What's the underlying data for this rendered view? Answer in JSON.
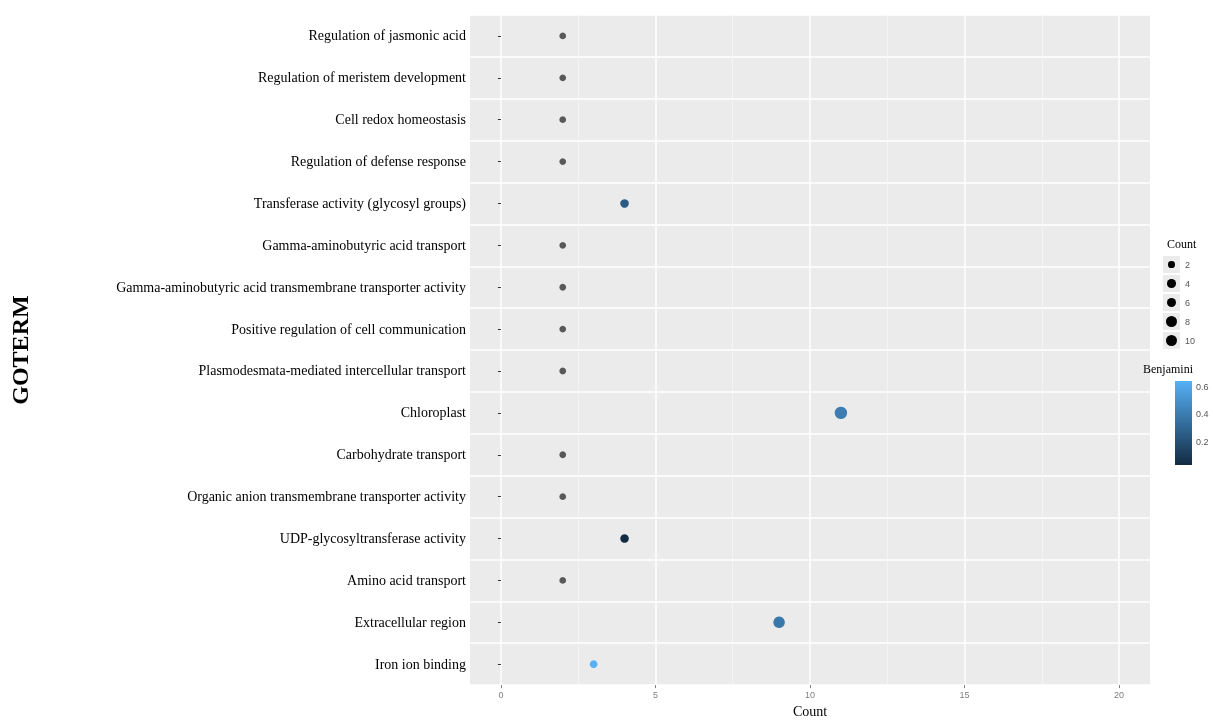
{
  "chart_data": {
    "type": "bubble",
    "orientation": "horizontal",
    "xlabel": "Count",
    "ylabel": "GOTERM",
    "legend_title": "Count",
    "clabel": "Benjamini",
    "categories": [
      "Regulation of jasmonic acid",
      "Regulation of meristem development",
      "Cell redox homeostasis",
      "Regulation of defense response",
      "Transferase activity (glycosyl groups)",
      "Gamma-aminobutyric acid transport",
      "Gamma-aminobutyric acid transmembrane transporter activity",
      "Positive regulation of cell communication",
      "Plasmodesmata-mediated intercellular transport",
      "Chloroplast",
      "Carbohydrate transport",
      "Organic anion transmembrane transporter activity",
      "UDP-glycosyltransferase activity",
      "Amino acid transport",
      "Extracellular region",
      "Iron ion binding"
    ],
    "values": [
      2,
      2,
      2,
      2,
      4,
      2,
      2,
      2,
      2,
      11,
      2,
      2,
      4,
      2,
      9,
      3
    ],
    "sizes": [
      2,
      2,
      2,
      2,
      4,
      2,
      2,
      2,
      2,
      11,
      2,
      2,
      4,
      2,
      9,
      3
    ],
    "cvalues": [
      null,
      null,
      null,
      null,
      0.25,
      null,
      null,
      null,
      null,
      0.4,
      null,
      null,
      0.03,
      null,
      0.38,
      0.64
    ],
    "size_legend": [
      2,
      4,
      6,
      8,
      10
    ],
    "clim": [
      0.03,
      0.64
    ],
    "cticks": [
      0.2,
      0.4,
      0.6
    ],
    "xlim": [
      -1,
      21
    ],
    "xticks": [
      0,
      5,
      10,
      15,
      20
    ],
    "grid": true,
    "marker": "circle"
  }
}
